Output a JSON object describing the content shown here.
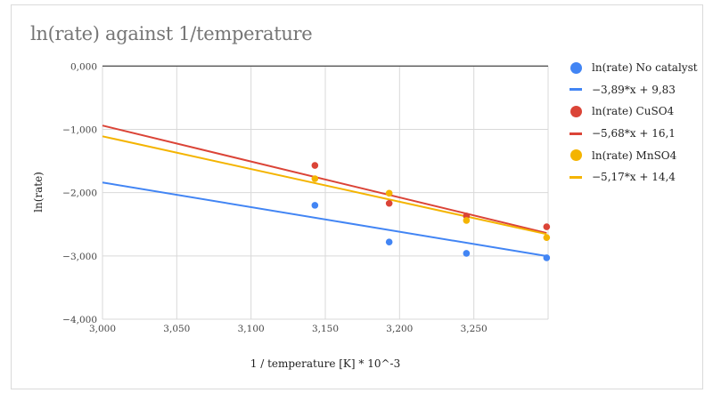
{
  "chart_data": {
    "type": "scatter",
    "title": "ln(rate) against 1/temperature",
    "xlabel": "1 / temperature [K] * 10^-3",
    "ylabel": "ln(rate)",
    "xlim": [
      3.0,
      3.3
    ],
    "ylim": [
      -4.0,
      0.0
    ],
    "x_ticks": [
      3.0,
      3.05,
      3.1,
      3.15,
      3.2,
      3.25
    ],
    "x_tick_labels": [
      "3,000",
      "3,050",
      "3,100",
      "3,150",
      "3,200",
      "3,250"
    ],
    "y_ticks": [
      0,
      -1,
      -2,
      -3,
      -4
    ],
    "y_tick_labels": [
      "0,000",
      "−1,000",
      "−2,000",
      "−3,000",
      "−4,000"
    ],
    "grid": true,
    "legend_position": "right",
    "series": [
      {
        "name": "ln(rate) No catalyst",
        "color": "#4285F4",
        "x": [
          3.143,
          3.193,
          3.245,
          3.299
        ],
        "y": [
          -2.2,
          -2.78,
          -2.96,
          -3.03
        ],
        "trendline": {
          "label": "−3,89*x + 9,83",
          "slope": -3.89,
          "intercept": 9.83
        }
      },
      {
        "name": "ln(rate) CuSO4",
        "color": "#DB4437",
        "x": [
          3.143,
          3.193,
          3.245,
          3.299
        ],
        "y": [
          -1.57,
          -2.17,
          -2.37,
          -2.54
        ],
        "trendline": {
          "label": "−5,68*x + 16,1",
          "slope": -5.68,
          "intercept": 16.1
        }
      },
      {
        "name": "ln(rate) MnSO4",
        "color": "#F4B400",
        "x": [
          3.143,
          3.193,
          3.245,
          3.299
        ],
        "y": [
          -1.78,
          -2.01,
          -2.44,
          -2.71
        ],
        "trendline": {
          "label": "−5,17*x + 14,4",
          "slope": -5.17,
          "intercept": 14.4
        }
      }
    ]
  }
}
